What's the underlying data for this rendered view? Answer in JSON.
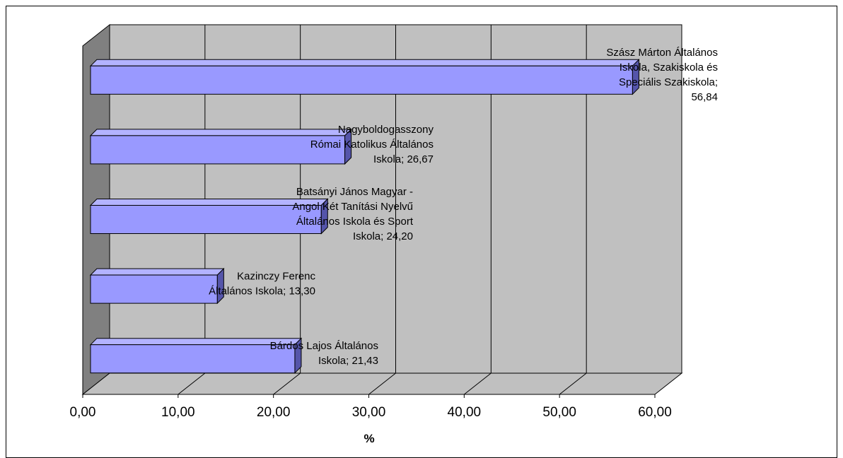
{
  "chart_data": {
    "type": "bar",
    "orientation": "horizontal",
    "three_d": true,
    "categories": [
      "Bárdos Lajos Általános Iskola",
      "Kazinczy Ferenc Általános Iskola",
      "Batsányi János Magyar - Angol Két Tanítási Nyelvű Általános Iskola és Sport Iskola",
      "Nagyboldogasszony Római Katolikus Általános Iskola",
      "Szász Márton Általános Iskola, Szakiskola és Speciális Szakiskola"
    ],
    "values": [
      21.43,
      13.3,
      24.2,
      26.67,
      56.84
    ],
    "data_labels": [
      [
        "Bárdos Lajos Általános",
        "Iskola; 21,43"
      ],
      [
        "Kazinczy Ferenc",
        "Általános Iskola; 13,30"
      ],
      [
        "Batsányi János Magyar -",
        "Angol Két Tanítási Nyelvű",
        "Általános Iskola és Sport",
        "Iskola; 24,20"
      ],
      [
        "Nagyboldogasszony",
        "Római Katolikus Általános",
        "Iskola; 26,67"
      ],
      [
        "Szász Márton Általános",
        "Iskola, Szakiskola és",
        "Speciális Szakiskola;",
        "56,84"
      ]
    ],
    "xlabel": "%",
    "xlim": [
      0,
      60
    ],
    "x_ticks": [
      "0,00",
      "10,00",
      "20,00",
      "30,00",
      "40,00",
      "50,00",
      "60,00"
    ],
    "grid": true,
    "legend": "none",
    "colors": {
      "bar_front": "#9999ff",
      "bar_top": "#b3b3ff",
      "bar_side": "#5555aa",
      "back_wall": "#c0c0c0",
      "side_wall": "#808080",
      "floor": "#c0c0c0"
    }
  }
}
